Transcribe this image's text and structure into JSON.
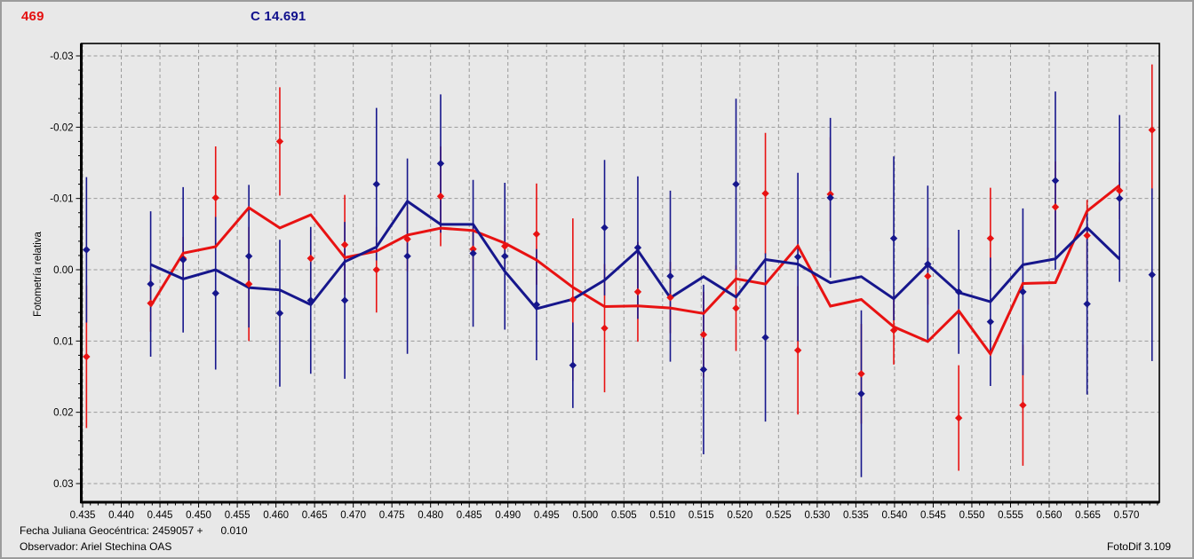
{
  "window": {
    "background": "#e8e8e8",
    "border_color": "#9c9c9c"
  },
  "header": {
    "target_label": "469",
    "target_color": "#e41010",
    "comparison_label": "C 14.691",
    "comparison_color": "#10108c"
  },
  "footer": {
    "jd_line_prefix": "Fecha Juliana Geocéntrica: 2459057 +",
    "jd_line_value": "0.010",
    "observer_line": "Observador: Ariel Stechina OAS",
    "app_version": "FotoDif 3.109"
  },
  "chart_data": {
    "type": "scatter",
    "title": "",
    "xlabel": "",
    "ylabel": "Fotometría relativa",
    "grid": "dashed",
    "grid_color": "#9a9a9a",
    "x_axis": {
      "min": 0.435,
      "max": 0.5743,
      "tick_start": 0.435,
      "tick_end": 0.57,
      "tick_step": 0.005,
      "minor_step": 0.001,
      "decimals": 3
    },
    "y_axis": {
      "min": -0.03,
      "max": 0.03,
      "tick_step": 0.01,
      "minor_step": 0.002,
      "decimals": 2,
      "inverted": true
    },
    "x": [
      0.4355,
      0.4438,
      0.448,
      0.4522,
      0.4565,
      0.4605,
      0.4645,
      0.4689,
      0.473,
      0.477,
      0.4813,
      0.4855,
      0.4896,
      0.4937,
      0.4984,
      0.5025,
      0.5068,
      0.511,
      0.5153,
      0.5195,
      0.5233,
      0.5275,
      0.5317,
      0.5357,
      0.5399,
      0.5443,
      0.5483,
      0.5524,
      0.5566,
      0.5608,
      0.5649,
      0.5691,
      0.5733
    ],
    "series": [
      {
        "name": "469",
        "role": "target-asteroid",
        "color": "#e81212",
        "y": [
          0.0122,
          0.0047,
          -0.0016,
          -0.0101,
          0.002,
          -0.018,
          -0.0016,
          -0.0035,
          0.0,
          -0.0043,
          -0.0103,
          -0.0029,
          -0.0033,
          -0.005,
          0.0042,
          0.0082,
          0.0031,
          0.0039,
          0.0091,
          0.0054,
          -0.0107,
          0.0113,
          -0.0106,
          0.0146,
          0.0085,
          0.0009,
          0.0208,
          -0.0044,
          0.019,
          -0.0088,
          -0.0048,
          -0.0111,
          -0.0196
        ],
        "err": [
          0.01,
          0.004,
          0.003,
          0.0072,
          0.008,
          0.0076,
          0.004,
          0.007,
          0.006,
          0.0045,
          0.007,
          0.003,
          0.003,
          0.0071,
          0.0114,
          0.009,
          0.007,
          0.005,
          0.006,
          0.006,
          0.0085,
          0.009,
          0.008,
          0.007,
          0.0048,
          0.004,
          0.0074,
          0.0071,
          0.0085,
          0.0064,
          0.005,
          0.004,
          0.0092
        ]
      },
      {
        "name": "C 14.691",
        "role": "comparison-star",
        "color": "#16168c",
        "y": [
          -0.0028,
          0.002,
          -0.0014,
          0.0033,
          -0.0019,
          0.0061,
          0.0043,
          0.0043,
          -0.012,
          -0.0019,
          -0.0149,
          -0.0023,
          -0.0019,
          0.0049,
          0.0134,
          -0.0059,
          -0.0031,
          0.0009,
          0.014,
          -0.012,
          0.0095,
          -0.0018,
          -0.0101,
          0.0174,
          -0.0044,
          -0.0008,
          0.0031,
          0.0073,
          0.0031,
          -0.0125,
          0.0048,
          -0.01,
          0.0007
        ],
        "err": [
          0.0102,
          0.0102,
          0.0102,
          0.0107,
          0.01,
          0.0103,
          0.0103,
          0.011,
          0.0107,
          0.0137,
          0.0097,
          0.0103,
          0.0103,
          0.0078,
          0.006,
          0.0095,
          0.01,
          0.012,
          0.0119,
          0.012,
          0.0118,
          0.0118,
          0.0112,
          0.0117,
          0.0115,
          0.011,
          0.0087,
          0.009,
          0.0117,
          0.0125,
          0.0127,
          0.0117,
          0.0121
        ]
      }
    ],
    "trend_lines": {
      "type": "moving_average",
      "window": 3
    }
  }
}
